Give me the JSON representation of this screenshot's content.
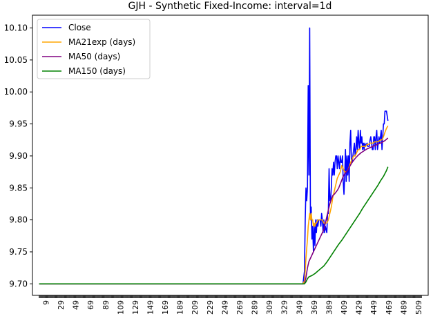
{
  "chart_data": {
    "type": "line",
    "title": "GJH - Synthetic Fixed-Income: interval=1d",
    "xlabel": "",
    "ylabel": "",
    "xlim": [
      -9,
      522
    ],
    "ylim": [
      9.682,
      10.12
    ],
    "grid": false,
    "legend_position": "upper-left",
    "x_ticks": [
      9,
      29,
      49,
      69,
      89,
      109,
      129,
      149,
      169,
      189,
      209,
      229,
      249,
      269,
      289,
      309,
      329,
      349,
      369,
      389,
      409,
      429,
      449,
      469,
      489,
      509
    ],
    "y_ticks": [
      9.7,
      9.75,
      9.8,
      9.85,
      9.9,
      9.95,
      10.0,
      10.05,
      10.1
    ],
    "y_tick_labels": [
      "9.70",
      "9.75",
      "9.80",
      "9.85",
      "9.90",
      "9.95",
      "10.00",
      "10.05",
      "10.10"
    ],
    "series": [
      {
        "name": "Close",
        "color": "#0000ff",
        "points": [
          [
            0,
            9.7
          ],
          [
            354,
            9.7
          ],
          [
            356,
            9.72
          ],
          [
            357,
            9.8
          ],
          [
            358,
            9.85
          ],
          [
            359,
            9.83
          ],
          [
            360,
            9.85
          ],
          [
            361,
            10.01
          ],
          [
            362,
            9.87
          ],
          [
            363,
            10.1
          ],
          [
            364,
            9.8
          ],
          [
            365,
            9.82
          ],
          [
            366,
            9.77
          ],
          [
            367,
            9.79
          ],
          [
            368,
            9.75
          ],
          [
            369,
            9.79
          ],
          [
            370,
            9.76
          ],
          [
            371,
            9.8
          ],
          [
            372,
            9.78
          ],
          [
            373,
            9.8
          ],
          [
            374,
            9.79
          ],
          [
            375,
            9.8
          ],
          [
            377,
            9.8
          ],
          [
            378,
            9.79
          ],
          [
            379,
            9.81
          ],
          [
            380,
            9.8
          ],
          [
            381,
            9.78
          ],
          [
            382,
            9.8
          ],
          [
            383,
            9.78
          ],
          [
            384,
            9.79
          ],
          [
            386,
            9.78
          ],
          [
            387,
            9.81
          ],
          [
            388,
            9.81
          ],
          [
            389,
            9.88
          ],
          [
            390,
            9.83
          ],
          [
            391,
            9.83
          ],
          [
            392,
            9.85
          ],
          [
            393,
            9.88
          ],
          [
            394,
            9.87
          ],
          [
            395,
            9.89
          ],
          [
            396,
            9.87
          ],
          [
            397,
            9.89
          ],
          [
            398,
            9.9
          ],
          [
            399,
            9.9
          ],
          [
            400,
            9.88
          ],
          [
            401,
            9.9
          ],
          [
            402,
            9.89
          ],
          [
            403,
            9.88
          ],
          [
            404,
            9.9
          ],
          [
            405,
            9.89
          ],
          [
            406,
            9.89
          ],
          [
            407,
            9.9
          ],
          [
            408,
            9.86
          ],
          [
            409,
            9.84
          ],
          [
            410,
            9.87
          ],
          [
            411,
            9.91
          ],
          [
            412,
            9.86
          ],
          [
            413,
            9.9
          ],
          [
            414,
            9.87
          ],
          [
            415,
            9.9
          ],
          [
            416,
            9.86
          ],
          [
            417,
            9.92
          ],
          [
            418,
            9.94
          ],
          [
            419,
            9.89
          ],
          [
            420,
            9.89
          ],
          [
            421,
            9.9
          ],
          [
            422,
            9.91
          ],
          [
            423,
            9.92
          ],
          [
            424,
            9.9
          ],
          [
            425,
            9.91
          ],
          [
            426,
            9.93
          ],
          [
            427,
            9.91
          ],
          [
            428,
            9.94
          ],
          [
            429,
            9.92
          ],
          [
            430,
            9.91
          ],
          [
            431,
            9.94
          ],
          [
            432,
            9.92
          ],
          [
            433,
            9.93
          ],
          [
            434,
            9.91
          ],
          [
            435,
            9.92
          ],
          [
            436,
            9.91
          ],
          [
            437,
            9.92
          ],
          [
            438,
            9.915
          ],
          [
            440,
            9.92
          ],
          [
            441,
            9.915
          ],
          [
            443,
            9.915
          ],
          [
            444,
            9.925
          ],
          [
            445,
            9.93
          ],
          [
            446,
            9.92
          ],
          [
            447,
            9.91
          ],
          [
            448,
            9.91
          ],
          [
            449,
            9.93
          ],
          [
            450,
            9.93
          ],
          [
            451,
            9.91
          ],
          [
            452,
            9.93
          ],
          [
            453,
            9.94
          ],
          [
            454,
            9.91
          ],
          [
            455,
            9.92
          ],
          [
            456,
            9.93
          ],
          [
            457,
            9.92
          ],
          [
            458,
            9.93
          ],
          [
            459,
            9.94
          ],
          [
            460,
            9.91
          ],
          [
            461,
            9.93
          ],
          [
            462,
            9.95
          ],
          [
            463,
            9.95
          ],
          [
            464,
            9.97
          ],
          [
            465,
            9.97
          ],
          [
            466,
            9.97
          ],
          [
            468,
            9.955
          ]
        ]
      },
      {
        "name": "MA21exp (days)",
        "color": "#ffa500",
        "points": [
          [
            0,
            9.7
          ],
          [
            354,
            9.7
          ],
          [
            356,
            9.705
          ],
          [
            357,
            9.72
          ],
          [
            358,
            9.74
          ],
          [
            359,
            9.755
          ],
          [
            360,
            9.77
          ],
          [
            361,
            9.79
          ],
          [
            362,
            9.8
          ],
          [
            363,
            9.81
          ],
          [
            364,
            9.8
          ],
          [
            365,
            9.81
          ],
          [
            366,
            9.8
          ],
          [
            367,
            9.8
          ],
          [
            368,
            9.79
          ],
          [
            369,
            9.795
          ],
          [
            370,
            9.79
          ],
          [
            371,
            9.795
          ],
          [
            372,
            9.795
          ],
          [
            374,
            9.8
          ],
          [
            376,
            9.8
          ],
          [
            378,
            9.8
          ],
          [
            380,
            9.8
          ],
          [
            382,
            9.795
          ],
          [
            384,
            9.795
          ],
          [
            386,
            9.795
          ],
          [
            388,
            9.8
          ],
          [
            390,
            9.81
          ],
          [
            392,
            9.82
          ],
          [
            394,
            9.835
          ],
          [
            396,
            9.845
          ],
          [
            398,
            9.855
          ],
          [
            400,
            9.865
          ],
          [
            402,
            9.87
          ],
          [
            404,
            9.875
          ],
          [
            406,
            9.885
          ],
          [
            408,
            9.88
          ],
          [
            410,
            9.875
          ],
          [
            412,
            9.875
          ],
          [
            414,
            9.878
          ],
          [
            416,
            9.883
          ],
          [
            418,
            9.89
          ],
          [
            420,
            9.895
          ],
          [
            422,
            9.9
          ],
          [
            424,
            9.9
          ],
          [
            426,
            9.905
          ],
          [
            428,
            9.91
          ],
          [
            430,
            9.91
          ],
          [
            432,
            9.915
          ],
          [
            434,
            9.915
          ],
          [
            436,
            9.915
          ],
          [
            438,
            9.915
          ],
          [
            440,
            9.918
          ],
          [
            442,
            9.918
          ],
          [
            444,
            9.92
          ],
          [
            446,
            9.92
          ],
          [
            448,
            9.92
          ],
          [
            450,
            9.922
          ],
          [
            452,
            9.922
          ],
          [
            454,
            9.922
          ],
          [
            456,
            9.923
          ],
          [
            458,
            9.925
          ],
          [
            460,
            9.925
          ],
          [
            462,
            9.93
          ],
          [
            464,
            9.937
          ],
          [
            466,
            9.943
          ],
          [
            468,
            9.947
          ]
        ]
      },
      {
        "name": "MA50 (days)",
        "color": "#800080",
        "points": [
          [
            0,
            9.7
          ],
          [
            356,
            9.7
          ],
          [
            358,
            9.71
          ],
          [
            360,
            9.725
          ],
          [
            362,
            9.735
          ],
          [
            364,
            9.74
          ],
          [
            366,
            9.745
          ],
          [
            368,
            9.75
          ],
          [
            370,
            9.755
          ],
          [
            372,
            9.76
          ],
          [
            374,
            9.765
          ],
          [
            376,
            9.77
          ],
          [
            378,
            9.775
          ],
          [
            380,
            9.78
          ],
          [
            382,
            9.785
          ],
          [
            384,
            9.795
          ],
          [
            386,
            9.805
          ],
          [
            388,
            9.815
          ],
          [
            390,
            9.825
          ],
          [
            392,
            9.832
          ],
          [
            394,
            9.838
          ],
          [
            396,
            9.84
          ],
          [
            398,
            9.843
          ],
          [
            400,
            9.846
          ],
          [
            402,
            9.85
          ],
          [
            404,
            9.856
          ],
          [
            406,
            9.862
          ],
          [
            408,
            9.868
          ],
          [
            410,
            9.872
          ],
          [
            412,
            9.875
          ],
          [
            414,
            9.878
          ],
          [
            416,
            9.882
          ],
          [
            418,
            9.886
          ],
          [
            420,
            9.89
          ],
          [
            424,
            9.896
          ],
          [
            428,
            9.901
          ],
          [
            432,
            9.905
          ],
          [
            436,
            9.908
          ],
          [
            440,
            9.911
          ],
          [
            444,
            9.913
          ],
          [
            448,
            9.915
          ],
          [
            452,
            9.917
          ],
          [
            456,
            9.919
          ],
          [
            460,
            9.921
          ],
          [
            464,
            9.924
          ],
          [
            468,
            9.928
          ]
        ]
      },
      {
        "name": "MA150 (days)",
        "color": "#008000",
        "points": [
          [
            0,
            9.7
          ],
          [
            356,
            9.7
          ],
          [
            358,
            9.703
          ],
          [
            360,
            9.708
          ],
          [
            362,
            9.711
          ],
          [
            366,
            9.713
          ],
          [
            370,
            9.716
          ],
          [
            374,
            9.72
          ],
          [
            378,
            9.724
          ],
          [
            382,
            9.728
          ],
          [
            386,
            9.734
          ],
          [
            390,
            9.741
          ],
          [
            394,
            9.748
          ],
          [
            398,
            9.755
          ],
          [
            402,
            9.762
          ],
          [
            406,
            9.768
          ],
          [
            410,
            9.775
          ],
          [
            414,
            9.782
          ],
          [
            418,
            9.789
          ],
          [
            422,
            9.796
          ],
          [
            426,
            9.803
          ],
          [
            430,
            9.81
          ],
          [
            434,
            9.818
          ],
          [
            438,
            9.825
          ],
          [
            442,
            9.832
          ],
          [
            446,
            9.839
          ],
          [
            450,
            9.846
          ],
          [
            454,
            9.853
          ],
          [
            458,
            9.861
          ],
          [
            462,
            9.868
          ],
          [
            466,
            9.877
          ],
          [
            468,
            9.883
          ]
        ]
      }
    ]
  }
}
